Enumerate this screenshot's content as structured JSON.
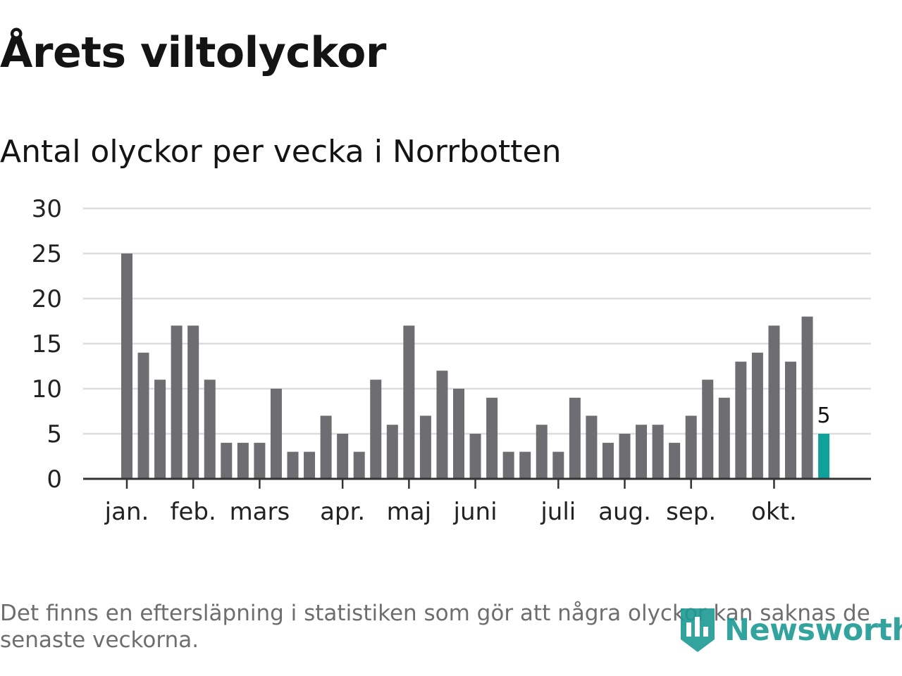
{
  "header": {
    "title": "Årets viltolyckor",
    "subtitle": "Antal olyckor per vecka i Norrbotten"
  },
  "footer": {
    "note": "Det finns en eftersläpning i statistiken som gör att några olyckor kan saknas de senaste veckorna.",
    "brand": "Newsworthy"
  },
  "colors": {
    "bar": "#6e6d72",
    "highlight": "#12a09a",
    "grid": "#dddddd",
    "axis": "#333333"
  },
  "chart_data": {
    "type": "bar",
    "title": "Antal olyckor per vecka i Norrbotten",
    "xlabel": "",
    "ylabel": "",
    "ylim": [
      0,
      30
    ],
    "yticks": [
      0,
      5,
      10,
      15,
      20,
      25,
      30
    ],
    "grid": true,
    "values": [
      25,
      14,
      11,
      17,
      17,
      11,
      4,
      4,
      4,
      10,
      3,
      3,
      7,
      5,
      3,
      11,
      6,
      17,
      7,
      12,
      10,
      5,
      9,
      3,
      3,
      6,
      3,
      9,
      7,
      4,
      5,
      6,
      6,
      4,
      7,
      11,
      9,
      13,
      14,
      17,
      13,
      18,
      5
    ],
    "highlight_index": 42,
    "highlight_label": "5",
    "month_labels": [
      {
        "label": "jan.",
        "week": 0
      },
      {
        "label": "feb.",
        "week": 4
      },
      {
        "label": "mars",
        "week": 8
      },
      {
        "label": "apr.",
        "week": 13
      },
      {
        "label": "maj",
        "week": 17
      },
      {
        "label": "juni",
        "week": 21
      },
      {
        "label": "juli",
        "week": 26
      },
      {
        "label": "aug.",
        "week": 30
      },
      {
        "label": "sep.",
        "week": 34
      },
      {
        "label": "okt.",
        "week": 39
      }
    ]
  }
}
